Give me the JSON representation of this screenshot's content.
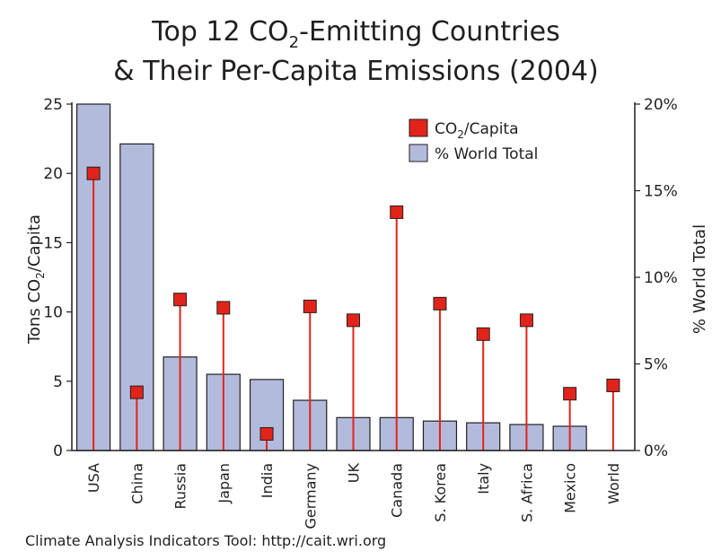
{
  "chart_data": {
    "type": "bar",
    "title_line1_a": "Top 12 CO",
    "title_line1_sub": "2",
    "title_line1_b": "-Emitting Countries",
    "title_line2": "& Their Per-Capita Emissions (2004)",
    "categories": [
      "USA",
      "China",
      "Russia",
      "Japan",
      "India",
      "Germany",
      "UK",
      "Canada",
      "S. Korea",
      "Italy",
      "S. Africa",
      "Mexico",
      "World"
    ],
    "series": [
      {
        "name": "% World Total",
        "axis": "right",
        "mark": "bar",
        "color": "#b3bbdd",
        "values": [
          20.0,
          17.7,
          5.4,
          4.4,
          4.1,
          2.9,
          1.9,
          1.9,
          1.7,
          1.6,
          1.5,
          1.4,
          null
        ]
      },
      {
        "name_a": "CO",
        "name_sub": "2",
        "name_b": "/Capita",
        "axis": "left",
        "mark": "lollipop",
        "color": "#e2231a",
        "values": [
          20.0,
          4.2,
          10.9,
          10.3,
          1.2,
          10.4,
          9.4,
          17.2,
          10.6,
          8.4,
          9.4,
          4.1,
          4.7
        ]
      }
    ],
    "ylabel_left_a": "Tons CO",
    "ylabel_left_sub": "2",
    "ylabel_left_b": "/Capita",
    "ylabel_right": "% World Total",
    "ylim_left": [
      0,
      25
    ],
    "ylim_right": [
      0,
      20
    ],
    "yticks_left": [
      "0",
      "5",
      "10",
      "15",
      "20",
      "25"
    ],
    "yticks_right": [
      "0%",
      "5%",
      "10%",
      "15%",
      "20%"
    ],
    "grid": false,
    "legend_position": "top-right"
  },
  "source": "Climate Analysis Indicators Tool:  http://cait.wri.org"
}
